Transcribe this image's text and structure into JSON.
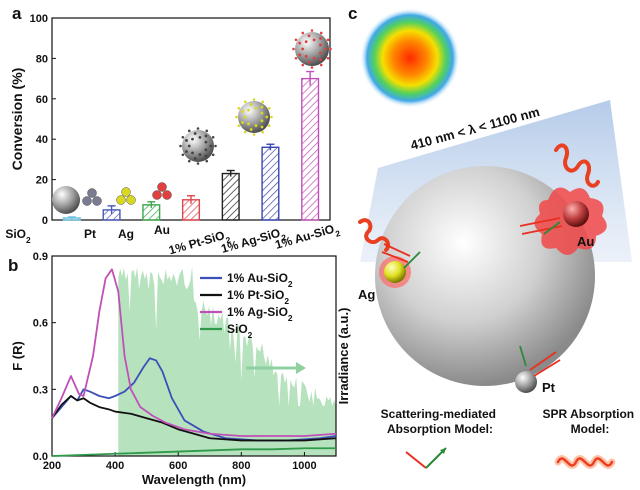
{
  "panels": {
    "a": "a",
    "b": "b",
    "c": "c"
  },
  "chart_data": [
    {
      "panel": "a",
      "type": "bar",
      "categories": [
        "SiO₂",
        "Pt",
        "Ag",
        "Au",
        "1% Pt-SiO₂",
        "1% Ag-SiO₂",
        "1% Au-SiO₂"
      ],
      "values": [
        1,
        5,
        7.5,
        10,
        23,
        36,
        70
      ],
      "errors": [
        0.5,
        2,
        1.5,
        2,
        1.5,
        1.5,
        3.5
      ],
      "colors": [
        "#6fc2e0",
        "#4a56b8",
        "#3aa84a",
        "#e0454a",
        "#222222",
        "#3a46b0",
        "#c050b8"
      ],
      "title": "",
      "xlabel": "",
      "ylabel": "Conversion (%)",
      "ylim": [
        0,
        100
      ],
      "yticks": [
        0,
        20,
        40,
        60,
        80,
        100
      ]
    },
    {
      "panel": "b",
      "type": "line",
      "xlabel": "Wavelength (nm)",
      "ylabel": "F (R)",
      "ylabel_right": "Irradiance (a.u.)",
      "xlim": [
        200,
        1100
      ],
      "ylim": [
        0,
        0.9
      ],
      "xticks": [
        200,
        400,
        600,
        800,
        1000
      ],
      "yticks": [
        0.0,
        0.3,
        0.6,
        0.9
      ],
      "legend_position": "top-right",
      "series": [
        {
          "name": "1% Au-SiO₂",
          "color": "#3b50b8",
          "x": [
            200,
            230,
            260,
            280,
            300,
            320,
            350,
            380,
            400,
            430,
            460,
            490,
            510,
            530,
            550,
            580,
            620,
            680,
            750,
            850,
            950,
            1050,
            1100
          ],
          "y": [
            0.17,
            0.22,
            0.27,
            0.25,
            0.3,
            0.29,
            0.27,
            0.26,
            0.27,
            0.29,
            0.33,
            0.4,
            0.44,
            0.43,
            0.38,
            0.26,
            0.16,
            0.11,
            0.08,
            0.07,
            0.07,
            0.08,
            0.09
          ]
        },
        {
          "name": "1% Pt-SiO₂",
          "color": "#111111",
          "x": [
            200,
            230,
            260,
            280,
            300,
            320,
            350,
            380,
            400,
            450,
            500,
            550,
            600,
            650,
            700,
            800,
            900,
            1000,
            1100
          ],
          "y": [
            0.17,
            0.23,
            0.27,
            0.25,
            0.26,
            0.24,
            0.22,
            0.21,
            0.2,
            0.19,
            0.17,
            0.15,
            0.12,
            0.1,
            0.08,
            0.07,
            0.07,
            0.07,
            0.08
          ]
        },
        {
          "name": "1% Ag-SiO₂",
          "color": "#c050b8",
          "x": [
            200,
            230,
            260,
            285,
            300,
            330,
            350,
            370,
            390,
            410,
            430,
            450,
            480,
            520,
            560,
            620,
            700,
            800,
            900,
            1000,
            1100
          ],
          "y": [
            0.17,
            0.26,
            0.36,
            0.28,
            0.27,
            0.45,
            0.65,
            0.8,
            0.84,
            0.74,
            0.45,
            0.3,
            0.22,
            0.18,
            0.15,
            0.12,
            0.1,
            0.09,
            0.09,
            0.09,
            0.1
          ]
        },
        {
          "name": "SiO₂",
          "color": "#2f9a4a",
          "x": [
            200,
            300,
            400,
            500,
            600,
            700,
            800,
            900,
            1000,
            1100
          ],
          "y": [
            0.0,
            0.005,
            0.01,
            0.015,
            0.02,
            0.025,
            0.03,
            0.03,
            0.035,
            0.035
          ]
        }
      ],
      "irradiance": {
        "color": "#9fd8a8",
        "x_start": 410,
        "x_end": 1100
      }
    }
  ],
  "diagram_c": {
    "wavelength_range": "410 nm < λ < 1100 nm",
    "metal_labels": {
      "au": "Au",
      "ag": "Ag",
      "pt": "Pt"
    },
    "legend": {
      "scattering": "Scattering-mediated\nAbsorption Model:",
      "spr": "SPR Absorption\nModel:"
    },
    "colors": {
      "sphere": "#c8c8c8",
      "au": "#e04040",
      "ag": "#d8d820",
      "pt": "#808080",
      "beam": "#a8c0e0"
    }
  }
}
